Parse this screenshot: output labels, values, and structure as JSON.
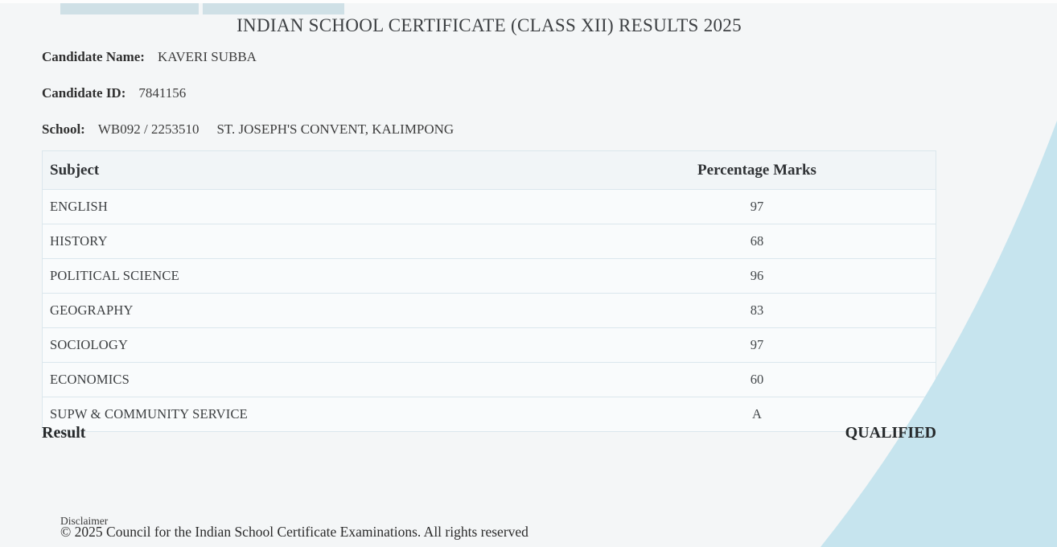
{
  "theme": {
    "page_background": "#f4f6f7",
    "tab_color": "#cfe0e6",
    "wedge_color": "#c6e4ee",
    "table_border_color": "#dbe7ed",
    "table_header_background": "#f1f5f7",
    "table_row_background": "#f9fbfc",
    "text_color": "#3c3c3c"
  },
  "page": {
    "title": "INDIAN SCHOOL CERTIFICATE (CLASS XII) RESULTS 2025"
  },
  "candidate": {
    "name_label": "Candidate Name:",
    "name_value": "KAVERI SUBBA",
    "id_label": "Candidate ID:",
    "id_value": "7841156",
    "school_label": "School:",
    "school_code": "WB092 / 2253510",
    "school_name": "ST. JOSEPH'S CONVENT, KALIMPONG"
  },
  "results_table": {
    "headers": [
      "Subject",
      "Percentage Marks"
    ],
    "rows": [
      {
        "subject": "ENGLISH",
        "marks": "97"
      },
      {
        "subject": "HISTORY",
        "marks": "68"
      },
      {
        "subject": "POLITICAL SCIENCE",
        "marks": "96"
      },
      {
        "subject": "GEOGRAPHY",
        "marks": "83"
      },
      {
        "subject": "SOCIOLOGY",
        "marks": "97"
      },
      {
        "subject": "ECONOMICS",
        "marks": "60"
      },
      {
        "subject": "SUPW & COMMUNITY SERVICE",
        "marks": "A"
      }
    ]
  },
  "result": {
    "label": "Result",
    "value": "QUALIFIED"
  },
  "footer": {
    "disclaimer_link": "Disclaimer",
    "copyright": "© 2025 Council for the Indian School Certificate Examinations. All rights reserved"
  }
}
